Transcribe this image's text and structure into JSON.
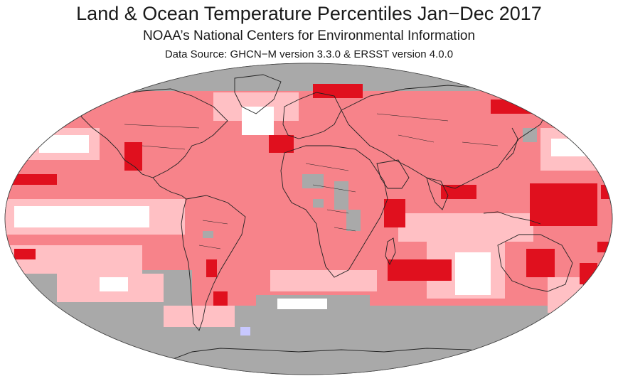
{
  "header": {
    "title": "Land & Ocean Temperature Percentiles Jan−Dec 2017",
    "subtitle": "NOAA’s National Centers for Environmental Information",
    "source": "Data Source: GHCN−M version 3.3.0 & ERSST version 4.0.0"
  },
  "map": {
    "projection": "robinson",
    "period": "Jan−Dec 2017",
    "colors": {
      "no_data": "#a9a9a9",
      "near_average": "#ffffff",
      "above_average": "#ffc0c4",
      "much_above_average": "#f7838a",
      "record_warmest": "#e0101e",
      "below_average": "#c8c8ff",
      "coastline": "#222222"
    }
  }
}
